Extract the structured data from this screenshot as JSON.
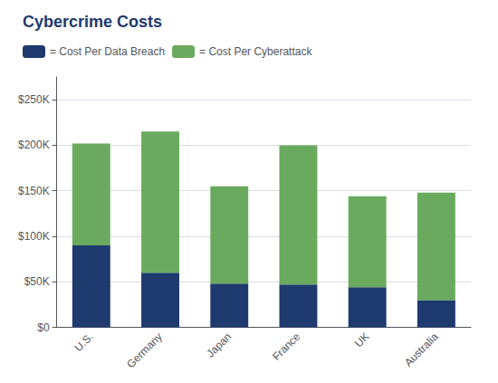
{
  "chart_data": {
    "type": "bar",
    "title": "Cybercrime Costs",
    "categories": [
      "U.S.",
      "Germany",
      "Japan",
      "France",
      "UK",
      "Australia"
    ],
    "series": [
      {
        "name": "= Cost Per Data Breach",
        "color": "#1e3a6e",
        "values": [
          90000,
          60000,
          48000,
          47000,
          44000,
          30000
        ]
      },
      {
        "name": "= Cost Per Cyberattack",
        "color": "#6aaa5e",
        "values": [
          112000,
          155000,
          107000,
          153000,
          100000,
          118000
        ]
      }
    ],
    "stacked": true,
    "ylim": [
      0,
      275000
    ],
    "yticks": [
      {
        "value": 0,
        "label": "$0"
      },
      {
        "value": 50000,
        "label": "$50K"
      },
      {
        "value": 100000,
        "label": "$100K"
      },
      {
        "value": 150000,
        "label": "$150K"
      },
      {
        "value": 200000,
        "label": "$200K"
      },
      {
        "value": 250000,
        "label": "$250K"
      }
    ],
    "grid": true,
    "legend": "upper left"
  }
}
